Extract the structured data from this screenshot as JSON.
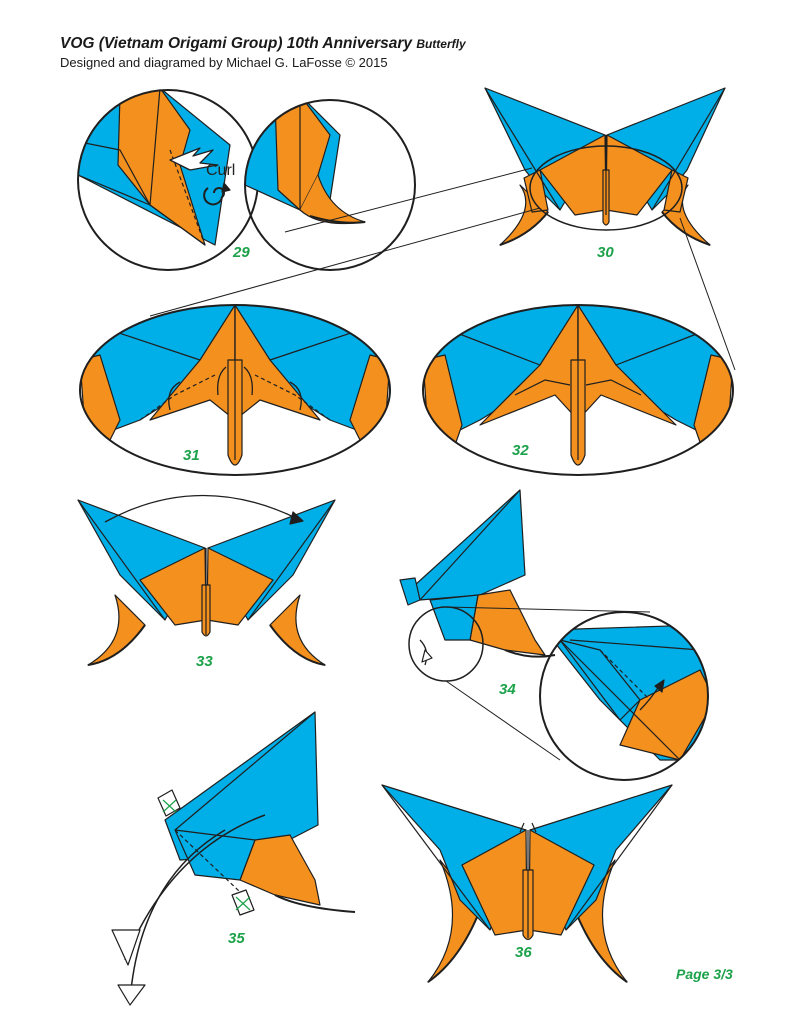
{
  "header": {
    "title": "VOG (Vietnam Origami Group) 10th Anniversary",
    "title_sub": "Butterfly",
    "credit": "Designed and diagramed by Michael G. LaFosse © 2015"
  },
  "steps": [
    "29",
    "30",
    "31",
    "32",
    "33",
    "34",
    "35",
    "36"
  ],
  "callouts": {
    "curl": "Curl"
  },
  "footer": {
    "page": "Page 3/3"
  },
  "colors": {
    "blue": "#00aee8",
    "orange": "#f4901e",
    "outline": "#1f1f1f",
    "step_number": "#1ca24a"
  }
}
